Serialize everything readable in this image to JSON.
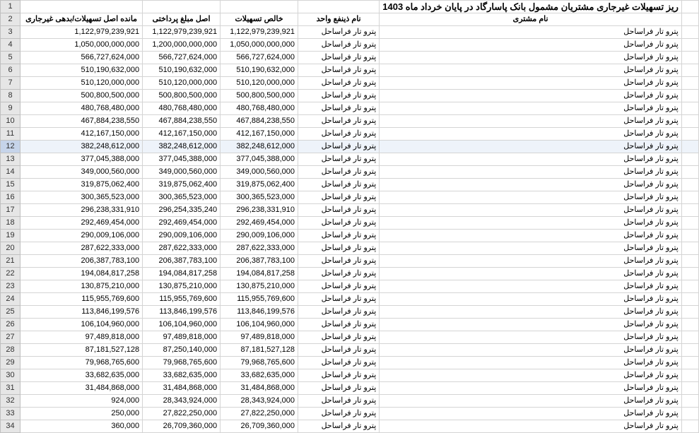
{
  "title": "ریز تسهیلات غیرجاری مشتریان مشمول بانک پاسارگاد در پایان خرداد ماه 1403",
  "headers": {
    "col_e": "نام مشتری",
    "col_d": "نام ذینفع واحد",
    "col_c": "خالص تسهیلات",
    "col_b": "اصل مبلغ پرداختی",
    "col_a": "مانده اصل تسهیلات/بدهی غیرجاری"
  },
  "customer": "پترو تار فراساحل",
  "beneficiary": "پترو تار فراساحل",
  "selected_row_index": 9,
  "colors": {
    "grid": "#d4d4d4",
    "header_bg": "#e6e6e6",
    "header_border": "#c0c0c0",
    "selection_bg": "#eef3fa",
    "selection_header_bg": "#c6d4ea",
    "text": "#000000",
    "bg": "#ffffff"
  },
  "rows": [
    {
      "c": "1,122,979,239,921",
      "b": "1,122,979,239,921",
      "a": "1,122,979,239,921"
    },
    {
      "c": "1,050,000,000,000",
      "b": "1,200,000,000,000",
      "a": "1,050,000,000,000"
    },
    {
      "c": "566,727,624,000",
      "b": "566,727,624,000",
      "a": "566,727,624,000"
    },
    {
      "c": "510,190,632,000",
      "b": "510,190,632,000",
      "a": "510,190,632,000"
    },
    {
      "c": "510,120,000,000",
      "b": "510,120,000,000",
      "a": "510,120,000,000"
    },
    {
      "c": "500,800,500,000",
      "b": "500,800,500,000",
      "a": "500,800,500,000"
    },
    {
      "c": "480,768,480,000",
      "b": "480,768,480,000",
      "a": "480,768,480,000"
    },
    {
      "c": "467,884,238,550",
      "b": "467,884,238,550",
      "a": "467,884,238,550"
    },
    {
      "c": "412,167,150,000",
      "b": "412,167,150,000",
      "a": "412,167,150,000"
    },
    {
      "c": "382,248,612,000",
      "b": "382,248,612,000",
      "a": "382,248,612,000"
    },
    {
      "c": "377,045,388,000",
      "b": "377,045,388,000",
      "a": "377,045,388,000"
    },
    {
      "c": "349,000,560,000",
      "b": "349,000,560,000",
      "a": "349,000,560,000"
    },
    {
      "c": "319,875,062,400",
      "b": "319,875,062,400",
      "a": "319,875,062,400"
    },
    {
      "c": "300,365,523,000",
      "b": "300,365,523,000",
      "a": "300,365,523,000"
    },
    {
      "c": "296,238,331,910",
      "b": "296,254,335,240",
      "a": "296,238,331,910"
    },
    {
      "c": "292,469,454,000",
      "b": "292,469,454,000",
      "a": "292,469,454,000"
    },
    {
      "c": "290,009,106,000",
      "b": "290,009,106,000",
      "a": "290,009,106,000"
    },
    {
      "c": "287,622,333,000",
      "b": "287,622,333,000",
      "a": "287,622,333,000"
    },
    {
      "c": "206,387,783,100",
      "b": "206,387,783,100",
      "a": "206,387,783,100"
    },
    {
      "c": "194,084,817,258",
      "b": "194,084,817,258",
      "a": "194,084,817,258"
    },
    {
      "c": "130,875,210,000",
      "b": "130,875,210,000",
      "a": "130,875,210,000"
    },
    {
      "c": "115,955,769,600",
      "b": "115,955,769,600",
      "a": "115,955,769,600"
    },
    {
      "c": "113,846,199,576",
      "b": "113,846,199,576",
      "a": "113,846,199,576"
    },
    {
      "c": "106,104,960,000",
      "b": "106,104,960,000",
      "a": "106,104,960,000"
    },
    {
      "c": "97,489,818,000",
      "b": "97,489,818,000",
      "a": "97,489,818,000"
    },
    {
      "c": "87,181,527,128",
      "b": "87,250,140,000",
      "a": "87,181,527,128"
    },
    {
      "c": "79,968,765,600",
      "b": "79,968,765,600",
      "a": "79,968,765,600"
    },
    {
      "c": "33,682,635,000",
      "b": "33,682,635,000",
      "a": "33,682,635,000"
    },
    {
      "c": "31,484,868,000",
      "b": "31,484,868,000",
      "a": "31,484,868,000"
    },
    {
      "c": "28,343,924,000",
      "b": "28,343,924,000",
      "a": "924,000"
    },
    {
      "c": "27,822,250,000",
      "b": "27,822,250,000",
      "a": "250,000"
    },
    {
      "c": "26,709,360,000",
      "b": "26,709,360,000",
      "a": "360,000"
    }
  ]
}
